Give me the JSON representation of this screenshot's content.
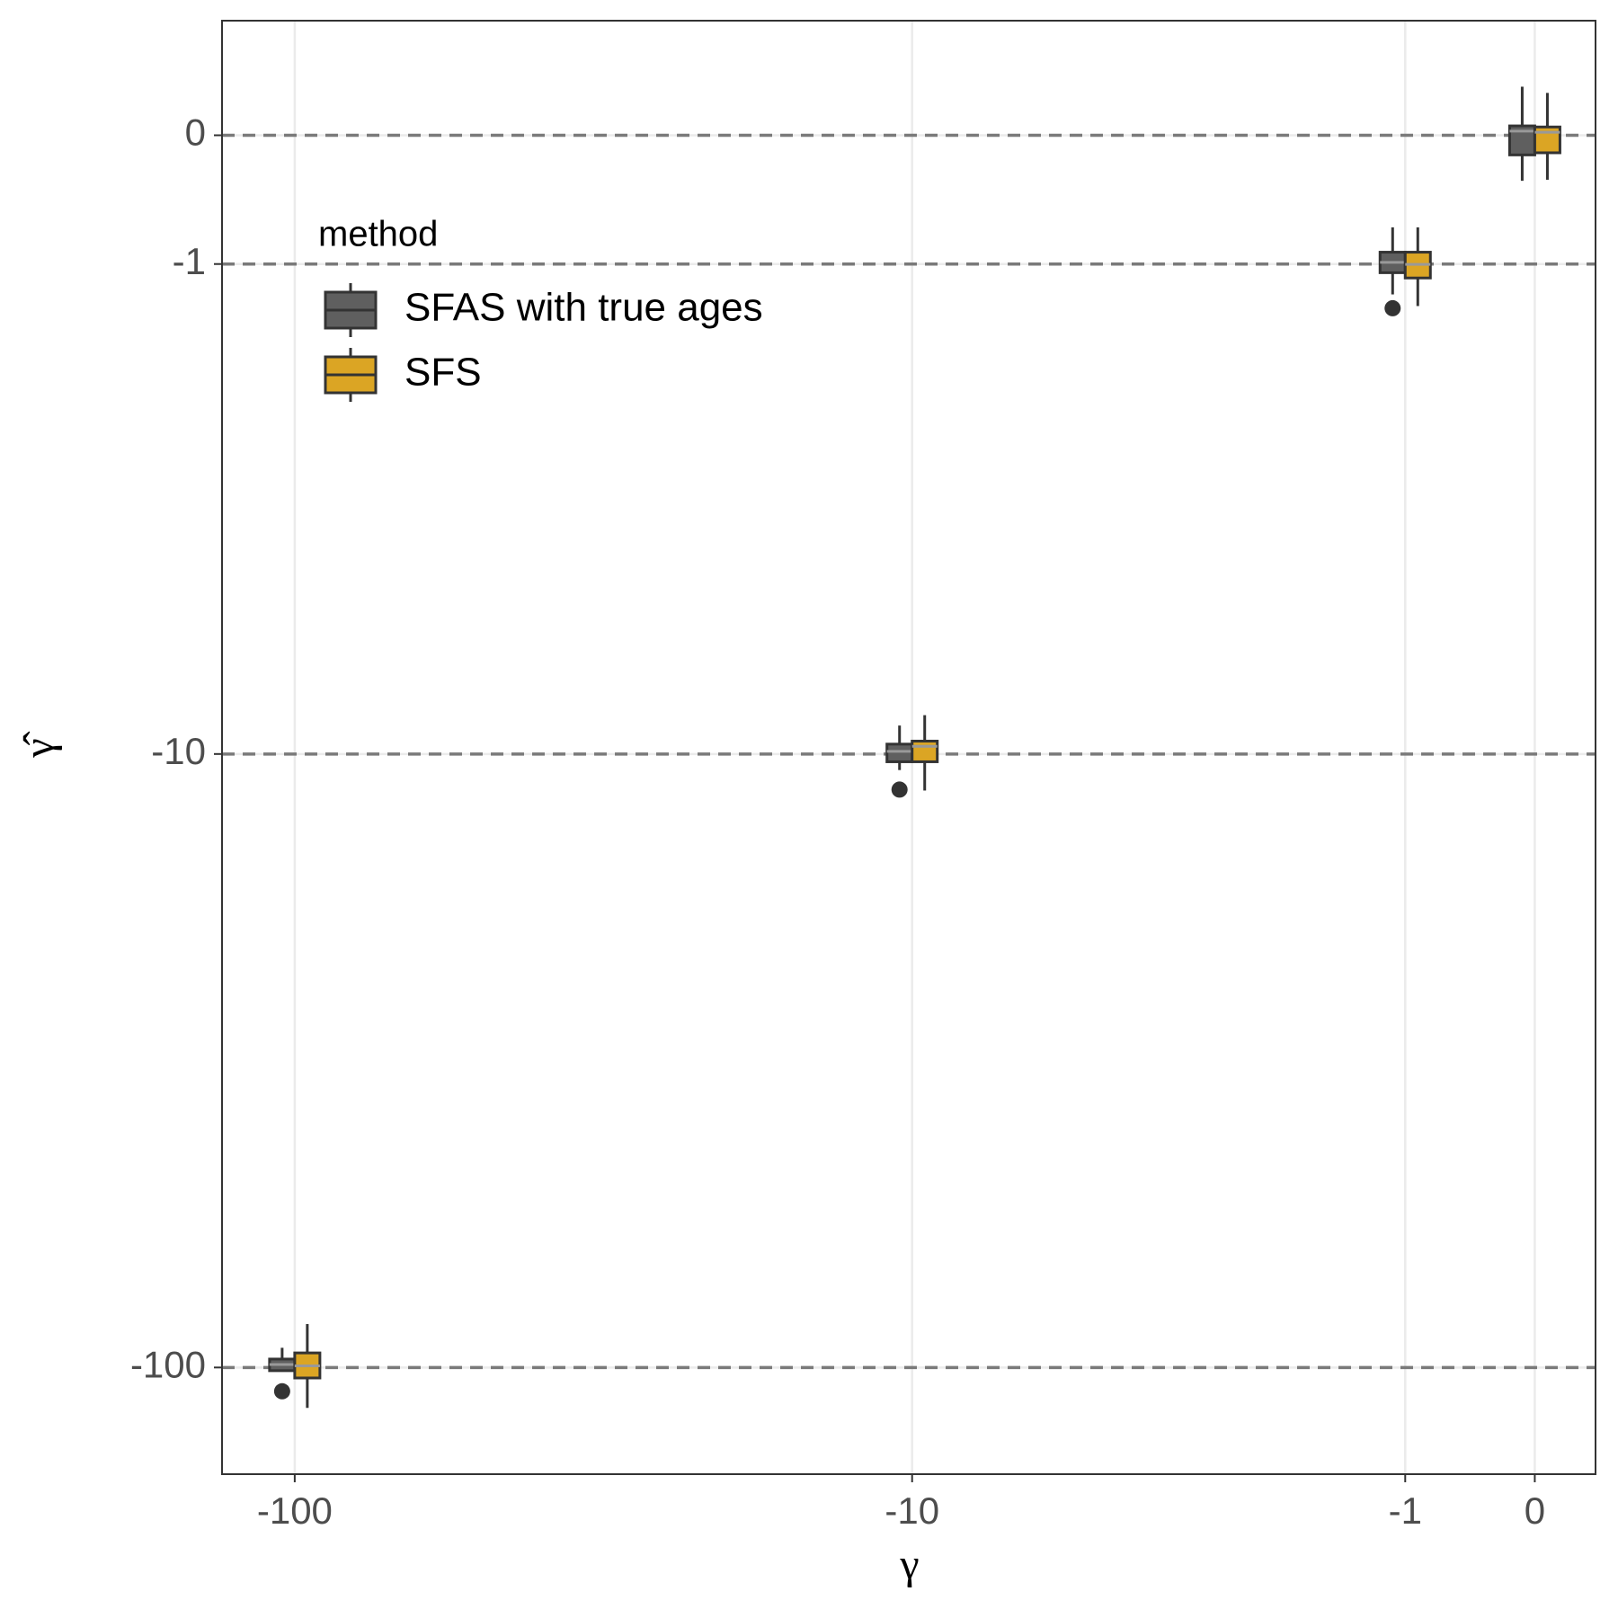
{
  "chart_data": {
    "type": "boxplot",
    "x_label": "γ",
    "y_label": "γ̂",
    "scale": "pseudo_log",
    "xlim": [
      -131,
      0.455
    ],
    "ylim": [
      -149,
      0.883
    ],
    "xticks": [
      -100,
      -10,
      -1,
      0
    ],
    "yticks": [
      0,
      -1,
      -10,
      -100
    ],
    "grid": true,
    "reference_lines": [
      0,
      -1,
      -10,
      -100
    ],
    "legend_title": "method",
    "legend_position": "top-left",
    "x": [
      -100,
      -10,
      -1,
      0
    ],
    "series": [
      {
        "name": "SFAS with true ages",
        "color": "#5f5f5f",
        "low": [
          -101.6,
          -10.63,
          -1.261,
          -0.342
        ],
        "q1": [
          -101.2,
          -10.3,
          -1.073,
          -0.147
        ],
        "median": [
          -98.9,
          -9.9,
          -0.986,
          0.031
        ],
        "q3": [
          -96.9,
          -9.63,
          -0.902,
          0.07
        ],
        "high": [
          -92.9,
          -8.97,
          -0.702,
          0.365
        ],
        "outliers": [
          [
            -109.3
          ],
          [
            -11.45
          ],
          [
            -1.385
          ],
          []
        ]
      },
      {
        "name": "SFS",
        "color": "#dba524",
        "low": [
          -116.3,
          -11.49,
          -1.365,
          -0.334
        ],
        "q1": [
          -104.0,
          -10.3,
          -1.118,
          -0.131
        ],
        "median": [
          -99.4,
          -9.71,
          -1.003,
          0.023
        ],
        "q3": [
          -94.7,
          -9.52,
          -0.902,
          0.062
        ],
        "high": [
          -85.0,
          -8.62,
          -0.702,
          0.318
        ],
        "outliers": [
          [],
          [],
          [],
          []
        ]
      }
    ]
  }
}
